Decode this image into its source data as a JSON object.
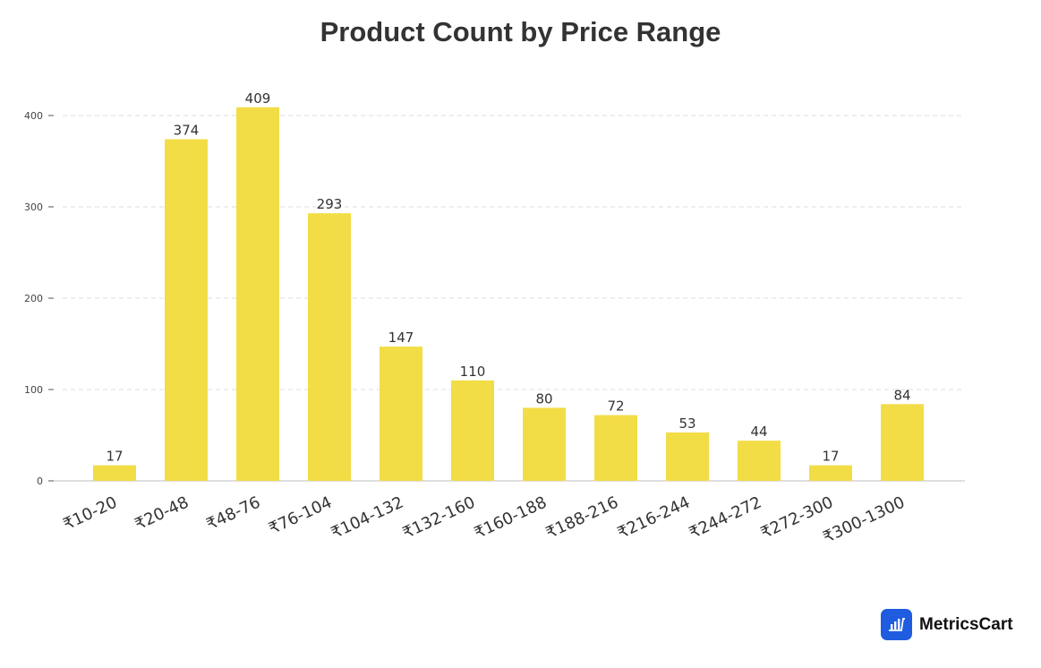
{
  "title": "Product Count by Price Range",
  "brand": {
    "name": "MetricsCart",
    "icon": "bar-chart-cart-icon",
    "color": "#1f5ce0"
  },
  "chart_data": {
    "type": "bar",
    "title": "Product Count by Price Range",
    "xlabel": "",
    "ylabel": "",
    "categories": [
      "₹10-20",
      "₹20-48",
      "₹48-76",
      "₹76-104",
      "₹104-132",
      "₹132-160",
      "₹160-188",
      "₹188-216",
      "₹216-244",
      "₹244-272",
      "₹272-300",
      "₹300-1300"
    ],
    "values": [
      17,
      374,
      409,
      293,
      147,
      110,
      80,
      72,
      53,
      44,
      17,
      84
    ],
    "yticks": [
      0,
      100,
      200,
      300,
      400
    ],
    "ylim": [
      0,
      430
    ],
    "grid": true,
    "bar_color": "#f2dd47",
    "data_labels": true,
    "legend": null
  }
}
